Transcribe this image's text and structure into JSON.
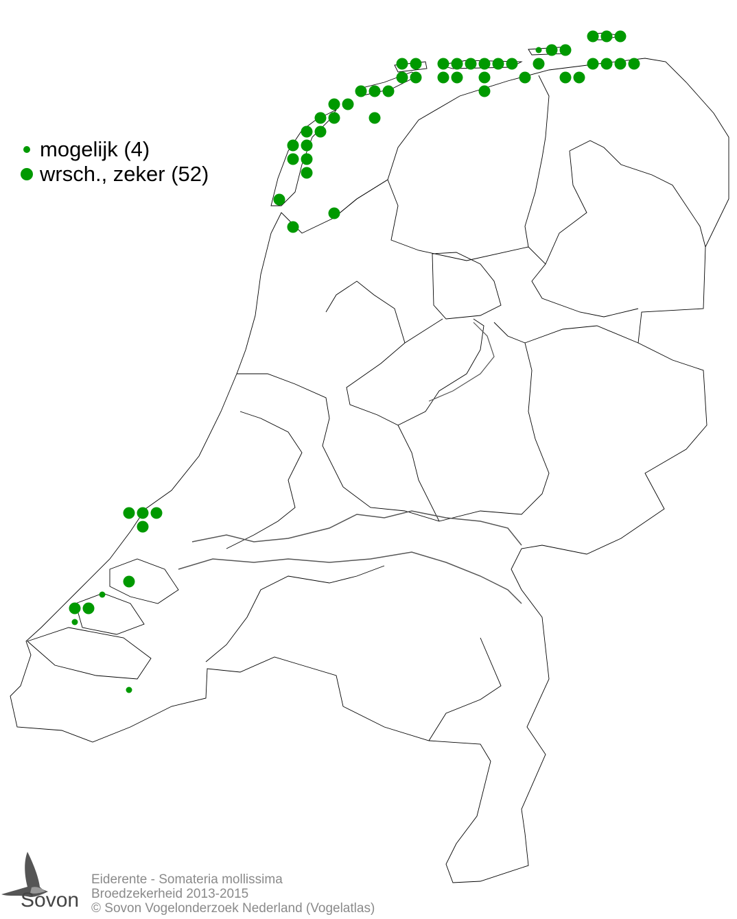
{
  "legend": {
    "items": [
      {
        "label": "mogelijk (4)",
        "size": "small"
      },
      {
        "label": "wrsch., zeker (52)",
        "size": "large"
      }
    ]
  },
  "colors": {
    "dot": "#009900",
    "border": "#000000",
    "caption": "#8a8a8a"
  },
  "caption": {
    "species": "Eiderente - Somateria mollissima",
    "subtitle": "Broedzekerheid 2013-2015",
    "copyright": "© Sovon Vogelonderzoek Nederland (Vogelatlas)"
  },
  "logo": {
    "text": "Sovon",
    "icon": "swallow-icon"
  }
}
